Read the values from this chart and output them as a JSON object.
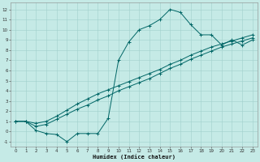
{
  "xlabel": "Humidex (Indice chaleur)",
  "bg_color": "#c5eae6",
  "line_color": "#006666",
  "grid_color": "#a0d0cc",
  "xlim": [
    -0.5,
    23.5
  ],
  "ylim": [
    -1.5,
    12.7
  ],
  "xticks": [
    0,
    1,
    2,
    3,
    4,
    5,
    6,
    7,
    8,
    9,
    10,
    11,
    12,
    13,
    14,
    15,
    16,
    17,
    18,
    19,
    20,
    21,
    22,
    23
  ],
  "yticks": [
    -1,
    0,
    1,
    2,
    3,
    4,
    5,
    6,
    7,
    8,
    9,
    10,
    11,
    12
  ],
  "line1_x": [
    0,
    1,
    2,
    3,
    4,
    5,
    6,
    7,
    8,
    9,
    10,
    11,
    12,
    13,
    14,
    15,
    16,
    17,
    18,
    19,
    20,
    21,
    22,
    23
  ],
  "line1_y": [
    1.0,
    1.0,
    0.1,
    -0.2,
    -0.3,
    -1.0,
    -0.2,
    -0.2,
    -0.2,
    1.3,
    7.0,
    8.8,
    10.0,
    10.4,
    11.0,
    12.0,
    11.7,
    10.5,
    9.5,
    9.5,
    8.5,
    9.0,
    8.5,
    9.0
  ],
  "line2_x": [
    0,
    1,
    2,
    3,
    4,
    5,
    6,
    7,
    8,
    9,
    10,
    11,
    12,
    13,
    14,
    15,
    16,
    17,
    18,
    19,
    20,
    21,
    22,
    23
  ],
  "line2_y": [
    1.0,
    1.0,
    0.5,
    0.7,
    1.2,
    1.7,
    2.2,
    2.6,
    3.1,
    3.5,
    4.0,
    4.4,
    4.8,
    5.2,
    5.7,
    6.2,
    6.6,
    7.1,
    7.5,
    7.9,
    8.3,
    8.6,
    8.9,
    9.2
  ],
  "line3_x": [
    0,
    1,
    2,
    3,
    4,
    5,
    6,
    7,
    8,
    9,
    10,
    11,
    12,
    13,
    14,
    15,
    16,
    17,
    18,
    19,
    20,
    21,
    22,
    23
  ],
  "line3_y": [
    1.0,
    1.0,
    0.8,
    1.0,
    1.5,
    2.1,
    2.7,
    3.2,
    3.7,
    4.1,
    4.5,
    4.9,
    5.3,
    5.7,
    6.1,
    6.6,
    7.0,
    7.5,
    7.9,
    8.3,
    8.6,
    8.9,
    9.2,
    9.5
  ]
}
